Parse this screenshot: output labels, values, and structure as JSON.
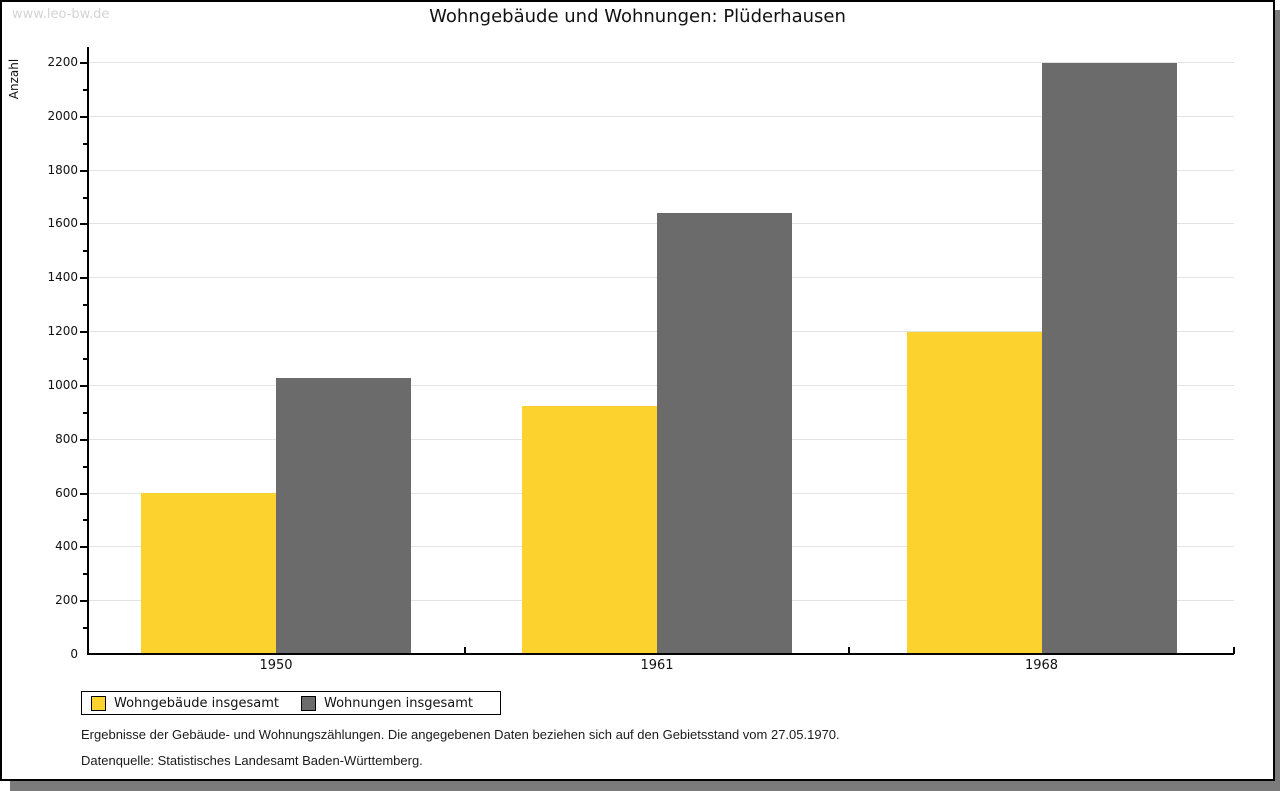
{
  "watermark": "www.leo-bw.de",
  "chart_data": {
    "type": "bar",
    "title": "Wohngebäude und Wohnungen: Plüderhausen",
    "ylabel": "Anzahl",
    "xlabel": "",
    "categories": [
      "1950",
      "1961",
      "1968"
    ],
    "series": [
      {
        "name": "Wohngebäude insgesamt",
        "color": "#FCD32E",
        "values": [
          600,
          920,
          1195
        ]
      },
      {
        "name": "Wohnungen insgesamt",
        "color": "#6B6B6B",
        "values": [
          1025,
          1640,
          2197
        ]
      }
    ],
    "ylim": [
      0,
      2200
    ],
    "ytick_step": 200,
    "yminor_step": 100,
    "grid": "horizontal",
    "gridline_color": "#e3e3e3",
    "legend_position": "bottom-left"
  },
  "footnotes": [
    "Ergebnisse der Gebäude- und Wohnungszählungen. Die angegebenen Daten beziehen sich auf den Gebietsstand vom 27.05.1970.",
    "Datenquelle: Statistisches Landesamt Baden-Württemberg."
  ]
}
